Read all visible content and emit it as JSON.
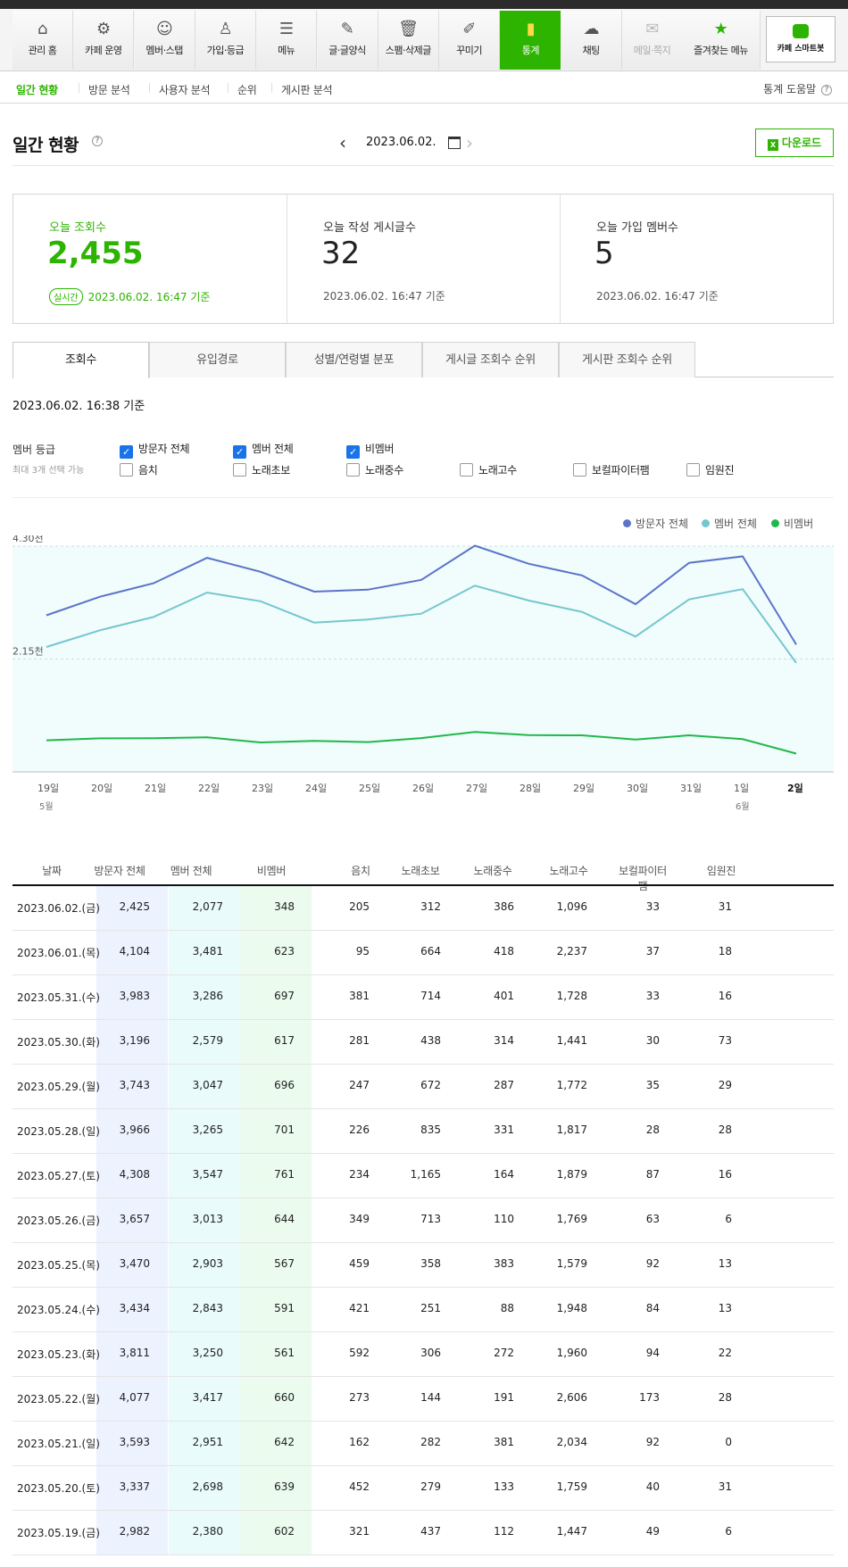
{
  "nav": {
    "items": [
      {
        "label": "관리 홈",
        "icon": "home-icon"
      },
      {
        "label": "카페 운영",
        "icon": "gear-icon"
      },
      {
        "label": "멤버·스탭",
        "icon": "members-icon"
      },
      {
        "label": "가입·등급",
        "icon": "user-grade-icon"
      },
      {
        "label": "메뉴",
        "icon": "menu-settings-icon"
      },
      {
        "label": "글·글양식",
        "icon": "pencil-icon"
      },
      {
        "label": "스팸·삭제글",
        "icon": "trash-icon"
      },
      {
        "label": "꾸미기",
        "icon": "brush-icon"
      },
      {
        "label": "통계",
        "icon": "bar-chart-icon"
      },
      {
        "label": "채팅",
        "icon": "chat-icon"
      },
      {
        "label": "메일·쪽지",
        "icon": "mail-icon"
      },
      {
        "label": "즐겨찾는 메뉴",
        "icon": "star-icon"
      }
    ],
    "active_index": 8,
    "smartbot_label": "카페 스마트봇"
  },
  "subnav": {
    "items": [
      "일간 현황",
      "방문 분석",
      "사용자 분석",
      "순위",
      "게시판 분석"
    ],
    "help_label": "통계 도움말"
  },
  "header": {
    "title": "일간 현황",
    "date": "2023.06.02.",
    "download_label": "다운로드"
  },
  "summary": {
    "views": {
      "label": "오늘 조회수",
      "value": "2,455",
      "badge": "실시간",
      "timestamp": "2023.06.02. 16:47 기준"
    },
    "posts": {
      "label": "오늘 작성 게시글수",
      "value": "32",
      "timestamp": "2023.06.02. 16:47 기준"
    },
    "members": {
      "label": "오늘 가입 멤버수",
      "value": "5",
      "timestamp": "2023.06.02. 16:47 기준"
    }
  },
  "tabs": [
    "조회수",
    "유입경로",
    "성별/연령별 분포",
    "게시글 조회수 순위",
    "게시판 조회수 순위"
  ],
  "based_on": "2023.06.02. 16:38 기준",
  "filter": {
    "label": "멤버 등급",
    "sublabel": "최대 3개 선택 가능",
    "options": [
      {
        "label": "방문자 전체",
        "checked": true
      },
      {
        "label": "멤버 전체",
        "checked": true
      },
      {
        "label": "비멤버",
        "checked": true
      },
      {
        "label": "음치",
        "checked": false
      },
      {
        "label": "노래초보",
        "checked": false
      },
      {
        "label": "노래중수",
        "checked": false
      },
      {
        "label": "노래고수",
        "checked": false
      },
      {
        "label": "보컬파이터팸",
        "checked": false
      },
      {
        "label": "임원진",
        "checked": false
      }
    ]
  },
  "chart_data": {
    "type": "line",
    "x": [
      "19일",
      "20일",
      "21일",
      "22일",
      "23일",
      "24일",
      "25일",
      "26일",
      "27일",
      "28일",
      "29일",
      "30일",
      "31일",
      "1일",
      "2일"
    ],
    "month_labels": [
      {
        "index": 0,
        "label": "5월"
      },
      {
        "index": 13,
        "label": "6월"
      }
    ],
    "y_ticks": [
      {
        "value": 4300,
        "label": "4.30천"
      },
      {
        "value": 2150,
        "label": "2.15천"
      }
    ],
    "ylim": [
      0,
      4300
    ],
    "legend_position": "top-right",
    "series": [
      {
        "name": "방문자 전체",
        "color": "#5b73c8",
        "values": [
          2982,
          3337,
          3593,
          4077,
          3811,
          3434,
          3470,
          3657,
          4308,
          3966,
          3743,
          3196,
          3983,
          4104,
          2425
        ]
      },
      {
        "name": "멤버 전체",
        "color": "#74c6cf",
        "values": [
          2380,
          2698,
          2951,
          3417,
          3250,
          2843,
          2903,
          3013,
          3547,
          3265,
          3047,
          2579,
          3286,
          3481,
          2077
        ]
      },
      {
        "name": "비멤버",
        "color": "#1fb84a",
        "values": [
          602,
          639,
          642,
          660,
          561,
          591,
          567,
          644,
          761,
          701,
          696,
          617,
          697,
          623,
          348
        ]
      }
    ]
  },
  "table": {
    "headers": [
      "날짜",
      "방문자 전체",
      "멤버 전체",
      "비멤버",
      "음치",
      "노래초보",
      "노래중수",
      "노래고수",
      "보컬파이터팸",
      "임원진"
    ],
    "rows": [
      [
        "2023.06.02.(금)",
        "2,425",
        "2,077",
        "348",
        "205",
        "312",
        "386",
        "1,096",
        "33",
        "31"
      ],
      [
        "2023.06.01.(목)",
        "4,104",
        "3,481",
        "623",
        "95",
        "664",
        "418",
        "2,237",
        "37",
        "18"
      ],
      [
        "2023.05.31.(수)",
        "3,983",
        "3,286",
        "697",
        "381",
        "714",
        "401",
        "1,728",
        "33",
        "16"
      ],
      [
        "2023.05.30.(화)",
        "3,196",
        "2,579",
        "617",
        "281",
        "438",
        "314",
        "1,441",
        "30",
        "73"
      ],
      [
        "2023.05.29.(월)",
        "3,743",
        "3,047",
        "696",
        "247",
        "672",
        "287",
        "1,772",
        "35",
        "29"
      ],
      [
        "2023.05.28.(일)",
        "3,966",
        "3,265",
        "701",
        "226",
        "835",
        "331",
        "1,817",
        "28",
        "28"
      ],
      [
        "2023.05.27.(토)",
        "4,308",
        "3,547",
        "761",
        "234",
        "1,165",
        "164",
        "1,879",
        "87",
        "16"
      ],
      [
        "2023.05.26.(금)",
        "3,657",
        "3,013",
        "644",
        "349",
        "713",
        "110",
        "1,769",
        "63",
        "6"
      ],
      [
        "2023.05.25.(목)",
        "3,470",
        "2,903",
        "567",
        "459",
        "358",
        "383",
        "1,579",
        "92",
        "13"
      ],
      [
        "2023.05.24.(수)",
        "3,434",
        "2,843",
        "591",
        "421",
        "251",
        "88",
        "1,948",
        "84",
        "13"
      ],
      [
        "2023.05.23.(화)",
        "3,811",
        "3,250",
        "561",
        "592",
        "306",
        "272",
        "1,960",
        "94",
        "22"
      ],
      [
        "2023.05.22.(월)",
        "4,077",
        "3,417",
        "660",
        "273",
        "144",
        "191",
        "2,606",
        "173",
        "28"
      ],
      [
        "2023.05.21.(일)",
        "3,593",
        "2,951",
        "642",
        "162",
        "282",
        "381",
        "2,034",
        "92",
        "0"
      ],
      [
        "2023.05.20.(토)",
        "3,337",
        "2,698",
        "639",
        "452",
        "279",
        "133",
        "1,759",
        "40",
        "31"
      ],
      [
        "2023.05.19.(금)",
        "2,982",
        "2,380",
        "602",
        "321",
        "437",
        "112",
        "1,447",
        "49",
        "6"
      ]
    ],
    "column_colors": [
      "#edf2ff",
      "#e9fbfb",
      "#ebfbee"
    ]
  },
  "colors": {
    "accent": "#2db400",
    "checkbox": "#1a73e8"
  }
}
